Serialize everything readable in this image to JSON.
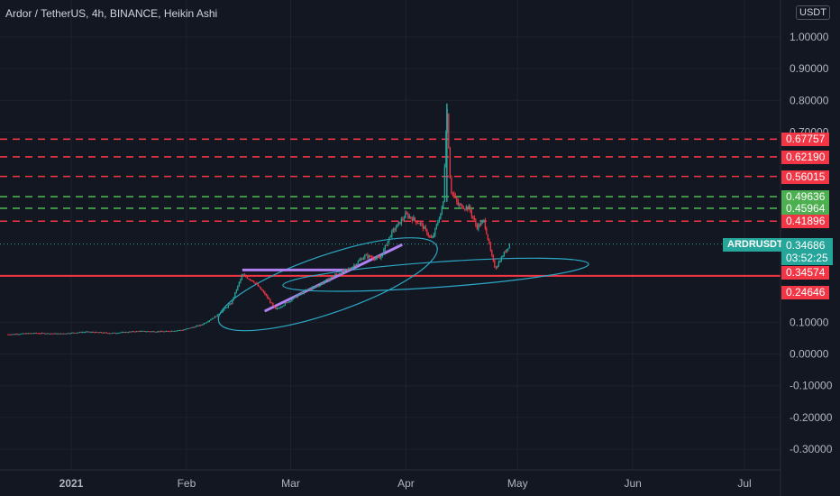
{
  "header": {
    "title": "Ardor / TetherUS, 4h, BINANCE, Heikin Ashi",
    "currency": "USDT"
  },
  "colors": {
    "background": "#131722",
    "red": "#f23645",
    "green": "#4caf50",
    "teal": "#26a69a",
    "cyan": "#2ca8c4",
    "purple": "#b07ff0",
    "grid": "#1e222d"
  },
  "chart_data": {
    "type": "candlestick",
    "symbol": "ARDRUSDT",
    "price_axis": {
      "ticks": [
        "1.00000",
        "0.90000",
        "0.80000",
        "0.70000",
        "0.10000",
        "0.00000",
        "-0.10000",
        "-0.20000",
        "-0.30000"
      ],
      "ylim": [
        -0.33,
        1.12
      ]
    },
    "time_axis": {
      "ticks": [
        "2021",
        "Feb",
        "Mar",
        "Apr",
        "May",
        "Jun",
        "Jul"
      ]
    },
    "last_price": "0.34686",
    "countdown": "03:52:25",
    "levels": [
      {
        "price": 0.67757,
        "label": "0.67757",
        "color": "red",
        "style": "dashed"
      },
      {
        "price": 0.6219,
        "label": "0.62190",
        "color": "red",
        "style": "dashed"
      },
      {
        "price": 0.56015,
        "label": "0.56015",
        "color": "red",
        "style": "dashed"
      },
      {
        "price": 0.49636,
        "label": "0.49636",
        "color": "green",
        "style": "dashed"
      },
      {
        "price": 0.45964,
        "label": "0.45964",
        "color": "green",
        "style": "dashed"
      },
      {
        "price": 0.41896,
        "label": "0.41896",
        "color": "red",
        "style": "dashed"
      },
      {
        "price": 0.24646,
        "label": "0.24646",
        "color": "red",
        "style": "solid"
      }
    ],
    "extra_labels": [
      {
        "label": "0.34574",
        "color": "red"
      }
    ],
    "price_path": [
      [
        "2020-12-15",
        0.062
      ],
      [
        "2020-12-22",
        0.066
      ],
      [
        "2020-12-29",
        0.064
      ],
      [
        "2021-01-05",
        0.07
      ],
      [
        "2021-01-12",
        0.066
      ],
      [
        "2021-01-19",
        0.072
      ],
      [
        "2021-01-26",
        0.071
      ],
      [
        "2021-01-31",
        0.076
      ],
      [
        "2021-02-05",
        0.092
      ],
      [
        "2021-02-09",
        0.12
      ],
      [
        "2021-02-13",
        0.16
      ],
      [
        "2021-02-16",
        0.25
      ],
      [
        "2021-02-19",
        0.23
      ],
      [
        "2021-02-22",
        0.19
      ],
      [
        "2021-02-25",
        0.14
      ],
      [
        "2021-03-01",
        0.17
      ],
      [
        "2021-03-05",
        0.2
      ],
      [
        "2021-03-09",
        0.22
      ],
      [
        "2021-03-13",
        0.25
      ],
      [
        "2021-03-17",
        0.27
      ],
      [
        "2021-03-21",
        0.31
      ],
      [
        "2021-03-25",
        0.3
      ],
      [
        "2021-03-28",
        0.38
      ],
      [
        "2021-04-01",
        0.44
      ],
      [
        "2021-04-05",
        0.41
      ],
      [
        "2021-04-08",
        0.36
      ],
      [
        "2021-04-11",
        0.47
      ],
      [
        "2021-04-12",
        0.79
      ],
      [
        "2021-04-13",
        0.52
      ],
      [
        "2021-04-15",
        0.47
      ],
      [
        "2021-04-18",
        0.46
      ],
      [
        "2021-04-20",
        0.4
      ],
      [
        "2021-04-22",
        0.42
      ],
      [
        "2021-04-24",
        0.31
      ],
      [
        "2021-04-25",
        0.27
      ],
      [
        "2021-04-27",
        0.31
      ],
      [
        "2021-04-29",
        0.35
      ]
    ],
    "annotations": {
      "cup_ellipse": {
        "cx": "2021-03-11",
        "cy": 0.22,
        "color": "cyan"
      },
      "handle_ellipse": {
        "cx": "2021-04-09",
        "cy": 0.25,
        "color": "cyan"
      },
      "resistance_line": {
        "from": [
          "2021-02-16",
          0.265
        ],
        "to": [
          "2021-03-17",
          0.265
        ],
        "color": "purple"
      },
      "trend_line": {
        "from": [
          "2021-02-22",
          0.135
        ],
        "to": [
          "2021-03-31",
          0.345
        ],
        "color": "purple"
      }
    }
  }
}
